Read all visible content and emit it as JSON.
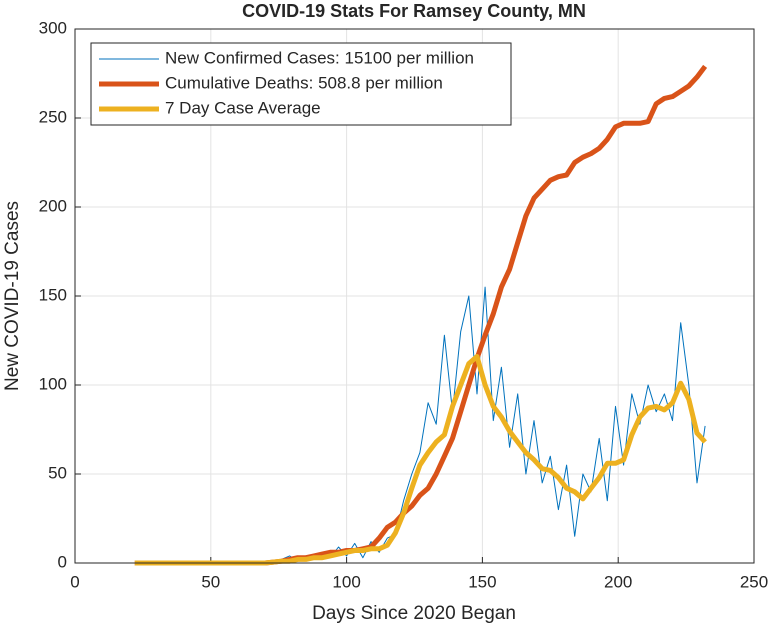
{
  "chart_data": {
    "type": "line",
    "title": "COVID-19 Stats For Ramsey County, MN",
    "x_label": "Days Since 2020 Began",
    "y_label": "New COVID-19 Cases",
    "xlim": [
      0,
      250
    ],
    "xticks": [
      0,
      50,
      100,
      150,
      200,
      250
    ],
    "ylim": [
      0,
      300
    ],
    "yticks": [
      0,
      50,
      100,
      150,
      200,
      250,
      300
    ],
    "grid": true,
    "legend": "northwest",
    "x": [
      22,
      25,
      28,
      31,
      34,
      37,
      40,
      43,
      46,
      49,
      52,
      55,
      58,
      61,
      64,
      67,
      70,
      73,
      76,
      79,
      82,
      85,
      88,
      91,
      94,
      97,
      100,
      103,
      106,
      109,
      112,
      115,
      118,
      121,
      124,
      127,
      130,
      133,
      136,
      139,
      142,
      145,
      148,
      151,
      154,
      157,
      160,
      163,
      166,
      169,
      172,
      175,
      178,
      181,
      184,
      187,
      190,
      193,
      196,
      199,
      202,
      205,
      208,
      211,
      214,
      217,
      220,
      223,
      226,
      229,
      232
    ],
    "series": [
      {
        "name": "New Confirmed Cases: 15100 per million",
        "color": "#0072BD",
        "width": 1,
        "values": [
          0,
          0,
          0,
          0,
          0,
          0,
          0,
          0,
          0,
          0,
          0,
          0,
          0,
          0,
          0,
          0,
          0,
          0,
          2,
          4,
          1,
          4,
          2,
          6,
          3,
          9,
          4,
          11,
          3,
          12,
          6,
          14,
          16,
          35,
          50,
          62,
          90,
          78,
          128,
          85,
          130,
          150,
          95,
          155,
          80,
          110,
          65,
          95,
          50,
          80,
          45,
          60,
          30,
          55,
          15,
          50,
          40,
          70,
          35,
          88,
          55,
          95,
          78,
          100,
          85,
          95,
          80,
          135,
          100,
          45,
          77
        ]
      },
      {
        "name": "Cumulative Deaths: 508.8 per million",
        "color": "#D95319",
        "width": 5,
        "values": [
          0,
          0,
          0,
          0,
          0,
          0,
          0,
          0,
          0,
          0,
          0,
          0,
          0,
          0,
          0,
          0,
          0,
          0.5,
          1,
          2,
          3,
          3,
          4,
          5,
          6,
          6,
          7,
          7,
          8,
          9,
          14,
          20,
          23,
          28,
          32,
          38,
          42,
          50,
          60,
          70,
          85,
          100,
          115,
          128,
          140,
          155,
          165,
          180,
          195,
          205,
          210,
          215,
          217,
          218,
          225,
          228,
          230,
          233,
          238,
          245,
          247,
          247,
          247,
          248,
          258,
          261,
          262,
          265,
          268,
          273,
          279
        ]
      },
      {
        "name": "7 Day Case Average",
        "color": "#EDB120",
        "width": 5,
        "values": [
          0,
          0,
          0,
          0,
          0,
          0,
          0,
          0,
          0,
          0,
          0,
          0,
          0,
          0,
          0,
          0,
          0,
          0.5,
          1,
          1,
          2,
          2,
          3,
          3,
          4,
          5,
          6,
          7,
          7,
          8,
          8,
          10,
          17,
          28,
          42,
          55,
          62,
          68,
          72,
          88,
          100,
          112,
          116,
          100,
          88,
          82,
          74,
          68,
          62,
          58,
          53,
          52,
          48,
          42,
          40,
          36,
          42,
          48,
          56,
          56,
          58,
          72,
          82,
          87,
          88,
          86,
          90,
          101,
          92,
          73,
          68
        ]
      }
    ]
  }
}
